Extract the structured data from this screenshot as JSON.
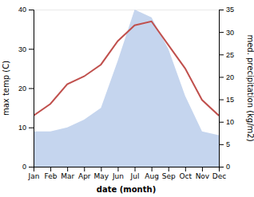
{
  "chart_data": {
    "type": "line",
    "categories": [
      "Jan",
      "Feb",
      "Mar",
      "Apr",
      "May",
      "Jun",
      "Jul",
      "Aug",
      "Sep",
      "Oct",
      "Nov",
      "Dec"
    ],
    "series": [
      {
        "type": "area",
        "color": "#c5d5ee",
        "values": [
          9,
          9,
          10,
          12,
          15,
          27,
          40,
          38,
          30,
          18,
          9,
          8
        ]
      },
      {
        "type": "line",
        "color": "#c0504d",
        "values": [
          13,
          16,
          21,
          23,
          26,
          32,
          36,
          37,
          31,
          25,
          17,
          13
        ]
      }
    ],
    "xlabel": "date (month)",
    "ylabel": "max temp (C)",
    "y2label": "med. precipitation (kg/m2)",
    "ylim": [
      0,
      40
    ],
    "yticks": [
      0,
      10,
      20,
      30,
      40
    ],
    "y2lim": [
      0,
      35
    ],
    "y2ticks": [
      0,
      5,
      10,
      15,
      20,
      25,
      30,
      35
    ],
    "grid": false
  }
}
